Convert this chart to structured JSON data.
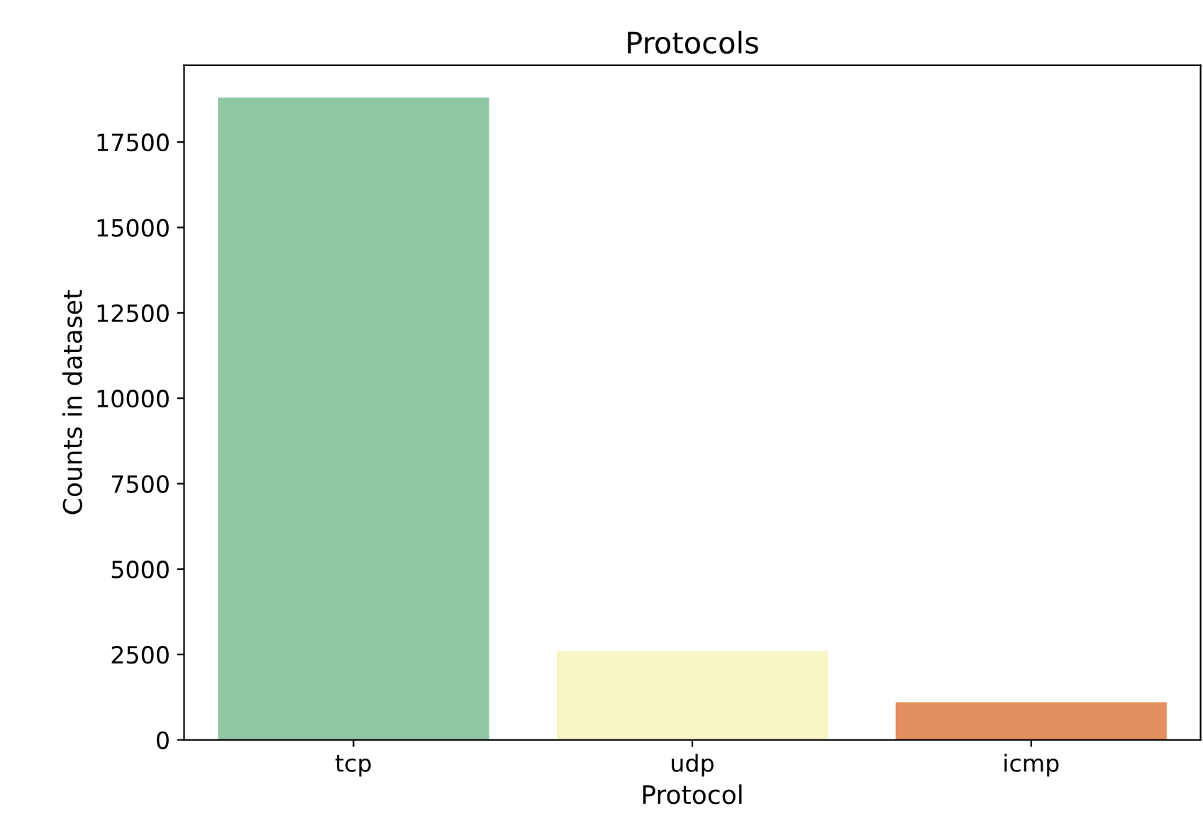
{
  "chart_data": {
    "type": "bar",
    "title": "Protocols",
    "xlabel": "Protocol",
    "ylabel": "Counts in dataset",
    "categories": [
      "tcp",
      "udp",
      "icmp"
    ],
    "values": [
      18800,
      2600,
      1100
    ],
    "colors": [
      "#8fc7a4",
      "#f6f5c3",
      "#e48f5f"
    ],
    "ylim": [
      0,
      19750
    ],
    "yticks": [
      0,
      2500,
      5000,
      7500,
      10000,
      12500,
      15000,
      17500
    ],
    "grid": false
  }
}
